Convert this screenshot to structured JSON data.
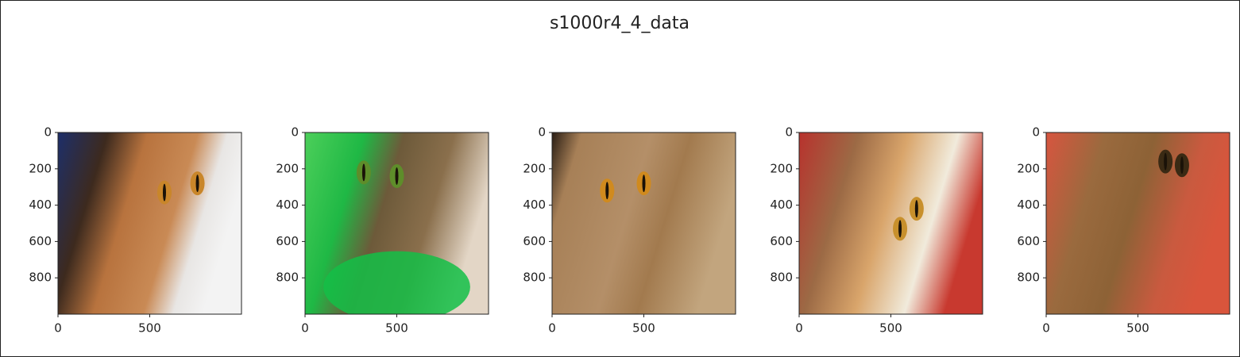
{
  "title": "s1000r4_4_data",
  "chart_data": [
    {
      "type": "image",
      "xlim": [
        0,
        1000
      ],
      "ylim": [
        1000,
        0
      ],
      "xticks": [
        0,
        500
      ],
      "yticks": [
        0,
        200,
        400,
        600,
        800
      ]
    },
    {
      "type": "image",
      "xlim": [
        0,
        1000
      ],
      "ylim": [
        1000,
        0
      ],
      "xticks": [
        0,
        500
      ],
      "yticks": [
        0,
        200,
        400,
        600,
        800
      ]
    },
    {
      "type": "image",
      "xlim": [
        0,
        1000
      ],
      "ylim": [
        1000,
        0
      ],
      "xticks": [
        0,
        500
      ],
      "yticks": [
        0,
        200,
        400,
        600,
        800
      ]
    },
    {
      "type": "image",
      "xlim": [
        0,
        1000
      ],
      "ylim": [
        1000,
        0
      ],
      "xticks": [
        0,
        500
      ],
      "yticks": [
        0,
        200,
        400,
        600,
        800
      ]
    },
    {
      "type": "image",
      "xlim": [
        0,
        1000
      ],
      "ylim": [
        1000,
        0
      ],
      "xticks": [
        0,
        500
      ],
      "yticks": [
        0,
        200,
        400,
        600,
        800
      ]
    }
  ]
}
